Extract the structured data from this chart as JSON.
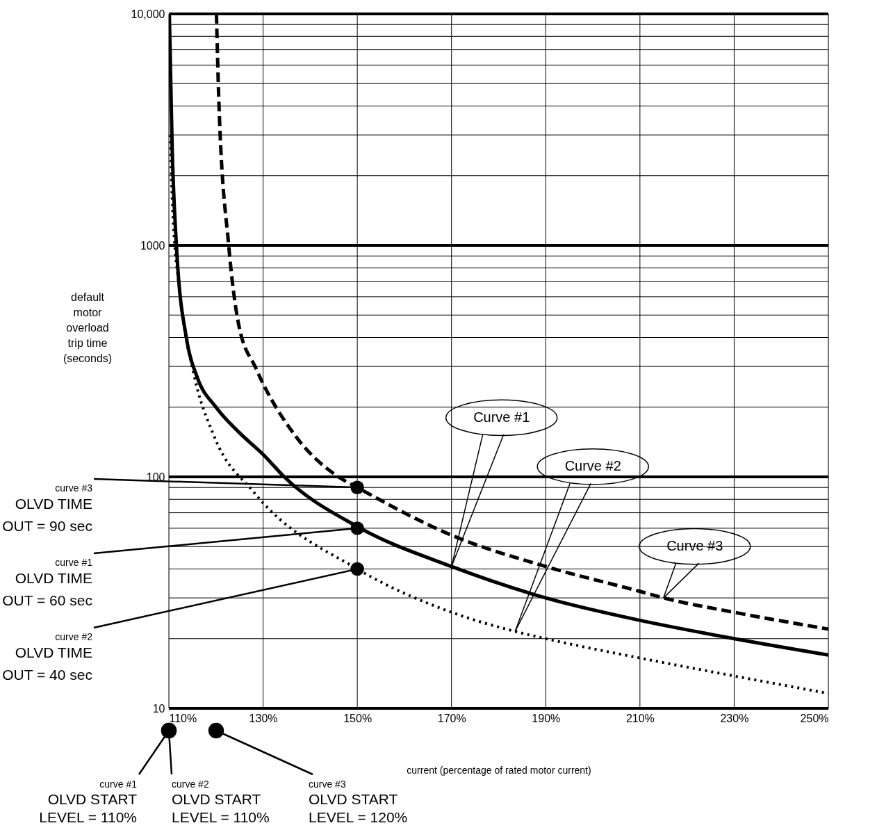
{
  "chart_data": {
    "type": "line",
    "xlabel": "current (percentage of rated motor current)",
    "ylabel": "default motor overload trip time (seconds)",
    "log": "y",
    "grid": true,
    "xlim": [
      110,
      250
    ],
    "xticks": [
      {
        "value": 110,
        "label": "110%"
      },
      {
        "value": 130,
        "label": "130%"
      },
      {
        "value": 150,
        "label": "150%"
      },
      {
        "value": 170,
        "label": "170%"
      },
      {
        "value": 190,
        "label": "190%"
      },
      {
        "value": 210,
        "label": "210%"
      },
      {
        "value": 230,
        "label": "230%"
      },
      {
        "value": 250,
        "label": "250%"
      }
    ],
    "ylim": [
      10,
      10000
    ],
    "yticks": [
      10,
      {
        "value": 20,
        "label": null
      },
      {
        "value": 30,
        "label": null
      },
      {
        "value": 40,
        "label": null
      },
      {
        "value": 50,
        "label": null
      },
      {
        "value": 60,
        "label": null
      },
      {
        "value": 70,
        "label": null
      },
      {
        "value": 80,
        "label": null
      },
      {
        "value": 90,
        "label": null
      },
      100,
      {
        "value": 200,
        "label": null
      },
      {
        "value": 300,
        "label": null
      },
      {
        "value": 400,
        "label": null
      },
      {
        "value": 500,
        "label": null
      },
      {
        "value": 600,
        "label": null
      },
      {
        "value": 700,
        "label": null
      },
      {
        "value": 800,
        "label": null
      },
      {
        "value": 900,
        "label": null
      },
      1000,
      {
        "value": 2000,
        "label": null
      },
      {
        "value": 3000,
        "label": null
      },
      {
        "value": 4000,
        "label": null
      },
      {
        "value": 5000,
        "label": null
      },
      {
        "value": 6000,
        "label": null
      },
      {
        "value": 7000,
        "label": null
      },
      {
        "value": 8000,
        "label": null
      },
      {
        "value": 9000,
        "label": null
      },
      {
        "value": 10000,
        "label": "10,000"
      }
    ],
    "series": [
      {
        "color": "#000000",
        "line_style": "solid",
        "x": [
          110.1,
          110.7,
          111.6,
          113.8,
          116,
          120,
          125,
          130,
          134.5,
          150,
          170,
          190,
          210,
          230,
          250
        ],
        "values": [
          10000,
          2630,
          1000,
          390,
          270,
          200,
          155,
          125,
          100,
          61,
          41,
          30,
          24,
          20,
          17
        ]
      },
      {
        "color": "#000000",
        "line_style": "dotted",
        "x": [
          110.3,
          110.7,
          112.3,
          115.2,
          119.6,
          128,
          150,
          170,
          183.5,
          190,
          210,
          230,
          250
        ],
        "values": [
          3000,
          1600,
          630,
          284,
          150,
          86,
          40,
          26,
          21.5,
          20,
          16.5,
          13.8,
          11.6
        ]
      },
      {
        "color": "#000000",
        "line_style": "dashed",
        "x": [
          120.1,
          120.6,
          122.7,
          124.8,
          128.5,
          136.9,
          146,
          150,
          170,
          190,
          210,
          215,
          230,
          250
        ],
        "values": [
          10000,
          4270,
          1000,
          457,
          294,
          150,
          100,
          90,
          56,
          41,
          32,
          30,
          26,
          22
        ]
      },
      {
        "type": "scatter",
        "color": "#000000",
        "marker": "circle",
        "x": [
          150,
          150,
          150
        ],
        "values": [
          90,
          60,
          40
        ]
      }
    ],
    "annotations": [
      {
        "text": "Curve #1",
        "x": 170,
        "y": 41
      },
      {
        "text": "Curve #2",
        "x": 183.5,
        "y": 21.5
      },
      {
        "text": "Curve #3",
        "x": 215,
        "y": 30
      },
      {
        "text": "curve #3\nOLVD TIME\nOUT = 90 sec",
        "x": 150,
        "y": 90
      },
      {
        "text": "curve #1\nOLVD TIME\nOUT = 60 sec",
        "x": 150,
        "y": 60
      },
      {
        "text": "curve #2\nOLVD TIME\nOUT = 40 sec",
        "x": 150,
        "y": 40
      },
      "curve #1\nOLVD START\nLEVEL = 110%",
      "curve #2\nOLVD START\nLEVEL = 110%",
      "curve #3\nOLVD START\nLEVEL = 120%"
    ]
  }
}
